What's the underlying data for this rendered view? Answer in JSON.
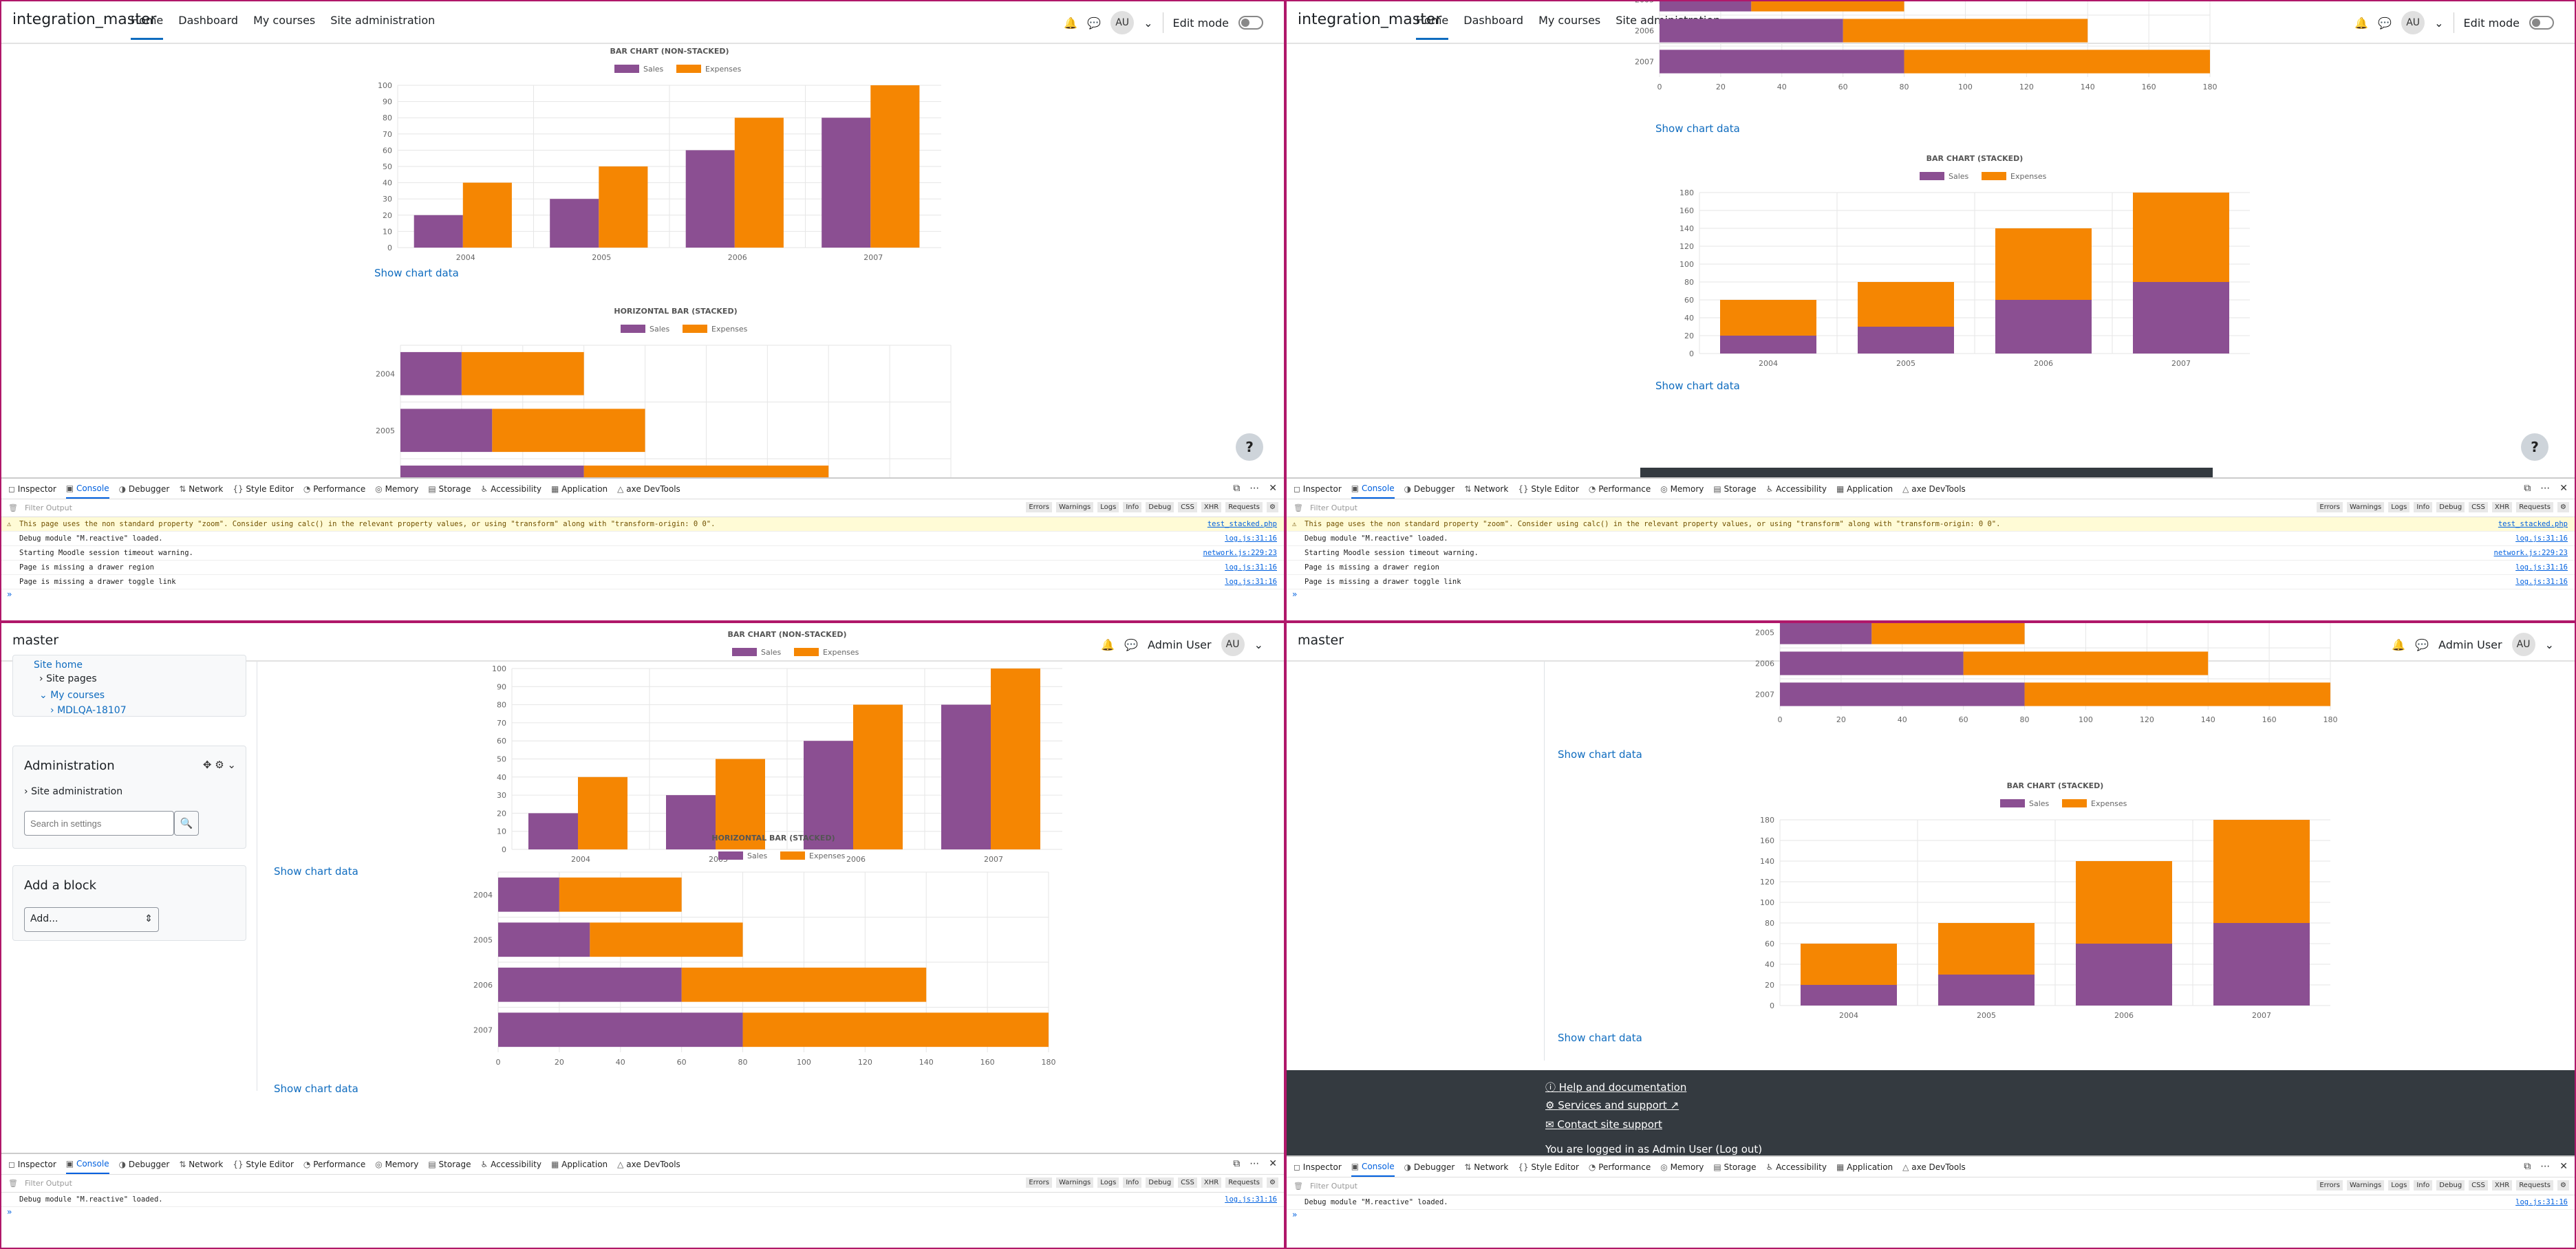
{
  "colors": {
    "sales": "#8b4f92",
    "expenses": "#f58602",
    "link": "#0f6cbf",
    "grid": "#e6e6e6"
  },
  "nav": {
    "site": "integration_master",
    "links": [
      "Home",
      "Dashboard",
      "My courses",
      "Site administration"
    ],
    "avatar": "AU",
    "edit_mode": "Edit mode",
    "site_alt": "master",
    "user_name": "Admin User"
  },
  "icons": {
    "bell": "bell-icon",
    "chat": "chat-icon",
    "help": "?",
    "chevron": "⌄"
  },
  "show_chart_data": "Show chart data",
  "chart_data": [
    {
      "type": "bar",
      "title": "BAR CHART (NON-STACKED)",
      "categories": [
        "2004",
        "2005",
        "2006",
        "2007"
      ],
      "series": [
        {
          "name": "Sales",
          "values": [
            20,
            30,
            60,
            80
          ]
        },
        {
          "name": "Expenses",
          "values": [
            40,
            50,
            80,
            100
          ]
        }
      ],
      "ylim": [
        0,
        100
      ],
      "yticks": [
        "0",
        "10",
        "20",
        "30",
        "40",
        "50",
        "60",
        "70",
        "80",
        "90",
        "100"
      ],
      "legend": "top"
    },
    {
      "type": "bar",
      "title": "HORIZONTAL BAR (STACKED)",
      "orientation": "horizontal",
      "stacked": true,
      "categories": [
        "2004",
        "2005",
        "2006",
        "2007"
      ],
      "series": [
        {
          "name": "Sales",
          "values": [
            20,
            30,
            60,
            80
          ]
        },
        {
          "name": "Expenses",
          "values": [
            40,
            50,
            80,
            100
          ]
        }
      ],
      "xlim": [
        0,
        180
      ],
      "xticks": [
        "0",
        "20",
        "40",
        "60",
        "80",
        "100",
        "120",
        "140",
        "160",
        "180"
      ],
      "legend": "top"
    },
    {
      "type": "bar",
      "title": "BAR CHART (STACKED)",
      "stacked": true,
      "categories": [
        "2004",
        "2005",
        "2006",
        "2007"
      ],
      "series": [
        {
          "name": "Sales",
          "values": [
            20,
            30,
            60,
            80
          ]
        },
        {
          "name": "Expenses",
          "values": [
            40,
            50,
            80,
            100
          ]
        }
      ],
      "ylim": [
        0,
        180
      ],
      "yticks": [
        "0",
        "20",
        "40",
        "60",
        "80",
        "100",
        "120",
        "140",
        "160",
        "180"
      ],
      "legend": "top"
    }
  ],
  "devtools": {
    "tabs": [
      "Inspector",
      "Console",
      "Debugger",
      "Network",
      "Style Editor",
      "Performance",
      "Memory",
      "Storage",
      "Accessibility",
      "Application",
      "axe DevTools"
    ],
    "filter_placeholder": "Filter Output",
    "filters": [
      "Errors",
      "Warnings",
      "Logs",
      "Info",
      "Debug",
      "CSS",
      "XHR",
      "Requests"
    ],
    "messages": [
      {
        "text": "This page uses the non standard property \"zoom\". Consider using calc() in the relevant property values, or using \"transform\" along with \"transform-origin: 0 0\".",
        "src": "test_stacked.php",
        "warn": true
      },
      {
        "text": "Debug module \"M.reactive\" loaded.",
        "src": "log.js:31:16"
      },
      {
        "text": "Starting Moodle session timeout warning.",
        "src": "network.js:229:23"
      },
      {
        "text": "Page is missing a drawer region",
        "src": "log.js:31:16"
      },
      {
        "text": "Page is missing a drawer toggle link",
        "src": "log.js:31:16"
      }
    ],
    "prompt": "»"
  },
  "sidebar": {
    "site_home": "Site home",
    "site_pages": "Site pages",
    "my_courses": "My courses",
    "course": "MDLQA-18107",
    "admin_title": "Administration",
    "site_admin": "Site administration",
    "search_placeholder": "Search in settings",
    "add_block_title": "Add a block",
    "add_select": "Add..."
  },
  "footer": {
    "help": "Help and documentation",
    "services": "Services and support",
    "contact": "Contact site support",
    "logged": "You are logged in as Admin User (Log out)"
  }
}
